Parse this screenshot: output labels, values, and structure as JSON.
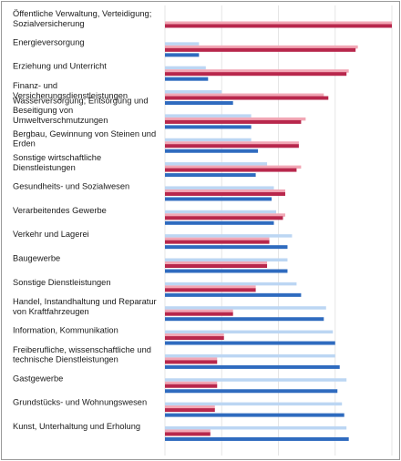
{
  "chart_data": {
    "type": "bar",
    "orientation": "horizontal",
    "title": "",
    "xlabel": "",
    "ylabel": "",
    "xlim": [
      0,
      100
    ],
    "grid": true,
    "legend": "none",
    "colors": [
      "#bcd6f3",
      "#f2a7b5",
      "#b8274c",
      "#2f6bbf"
    ],
    "categories": [
      [
        "Öffentliche Verwaltung, Verteidigung;",
        "Sozialversicherung"
      ],
      [
        "Energieversorgung"
      ],
      [
        "Erziehung und Unterricht"
      ],
      [
        "Finanz- und",
        "Versicherungsdienstleistungen"
      ],
      [
        "Wasserversorgung; Entsorgung und",
        "Beseitigung von",
        "Umweltverschmutzungen"
      ],
      [
        "Bergbau, Gewinnung von Steinen und",
        "Erden"
      ],
      [
        "Sonstige wirtschaftliche",
        "Dienstleistungen"
      ],
      [
        "Gesundheits- und Sozialwesen"
      ],
      [
        "Verarbeitendes Gewerbe"
      ],
      [
        "Verkehr und Lagerei"
      ],
      [
        "Baugewerbe"
      ],
      [
        "Sonstige Dienstleistungen"
      ],
      [
        "Handel, Instandhaltung und Reparatur",
        "von Kraftfahrzeugen"
      ],
      [
        "Information, Kommunikation"
      ],
      [
        "Freiberufliche, wissenschaftliche und",
        "technische Dienstleistungen"
      ],
      [
        "Gastgewerbe"
      ],
      [
        "Grundstücks- und Wohnungswesen"
      ],
      [
        "Kunst, Unterhaltung und Erholung"
      ]
    ],
    "series": [
      {
        "values": [
          0,
          15,
          18,
          25,
          38,
          38,
          45,
          48,
          49,
          56,
          54,
          58,
          71,
          74,
          75,
          80,
          78,
          80
        ]
      },
      {
        "values": [
          100,
          85,
          81,
          70,
          62,
          59,
          60,
          53,
          53,
          46,
          45,
          40,
          30,
          26,
          23,
          23,
          22,
          20
        ]
      },
      {
        "values": [
          100,
          84,
          80,
          72,
          60,
          59,
          58,
          53,
          52,
          46,
          45,
          40,
          30,
          26,
          23,
          23,
          22,
          20
        ]
      },
      {
        "values": [
          0,
          15,
          19,
          30,
          38,
          41,
          40,
          47,
          48,
          54,
          54,
          60,
          70,
          75,
          77,
          76,
          79,
          81
        ]
      }
    ]
  }
}
